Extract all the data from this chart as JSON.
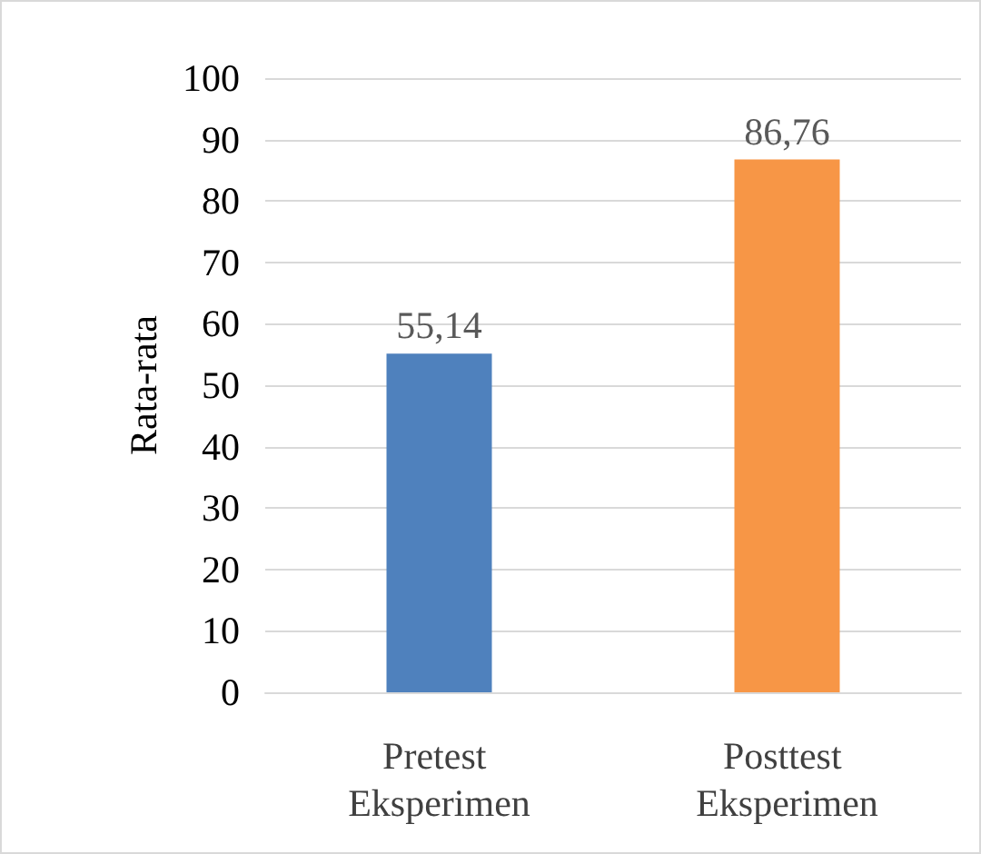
{
  "chart_data": {
    "type": "bar",
    "ylabel": "Rata-rata",
    "categories": [
      "Pretest Eksperimen",
      "Posttest Eksperimen"
    ],
    "values": [
      55.14,
      86.76
    ],
    "colors": [
      "#4f81bd",
      "#f79646"
    ],
    "value_labels": [
      "55,14",
      "86,76"
    ],
    "ylim": [
      0,
      100
    ],
    "yticks": [
      0,
      10,
      20,
      30,
      40,
      50,
      60,
      70,
      80,
      90,
      100
    ],
    "grid": "y"
  }
}
